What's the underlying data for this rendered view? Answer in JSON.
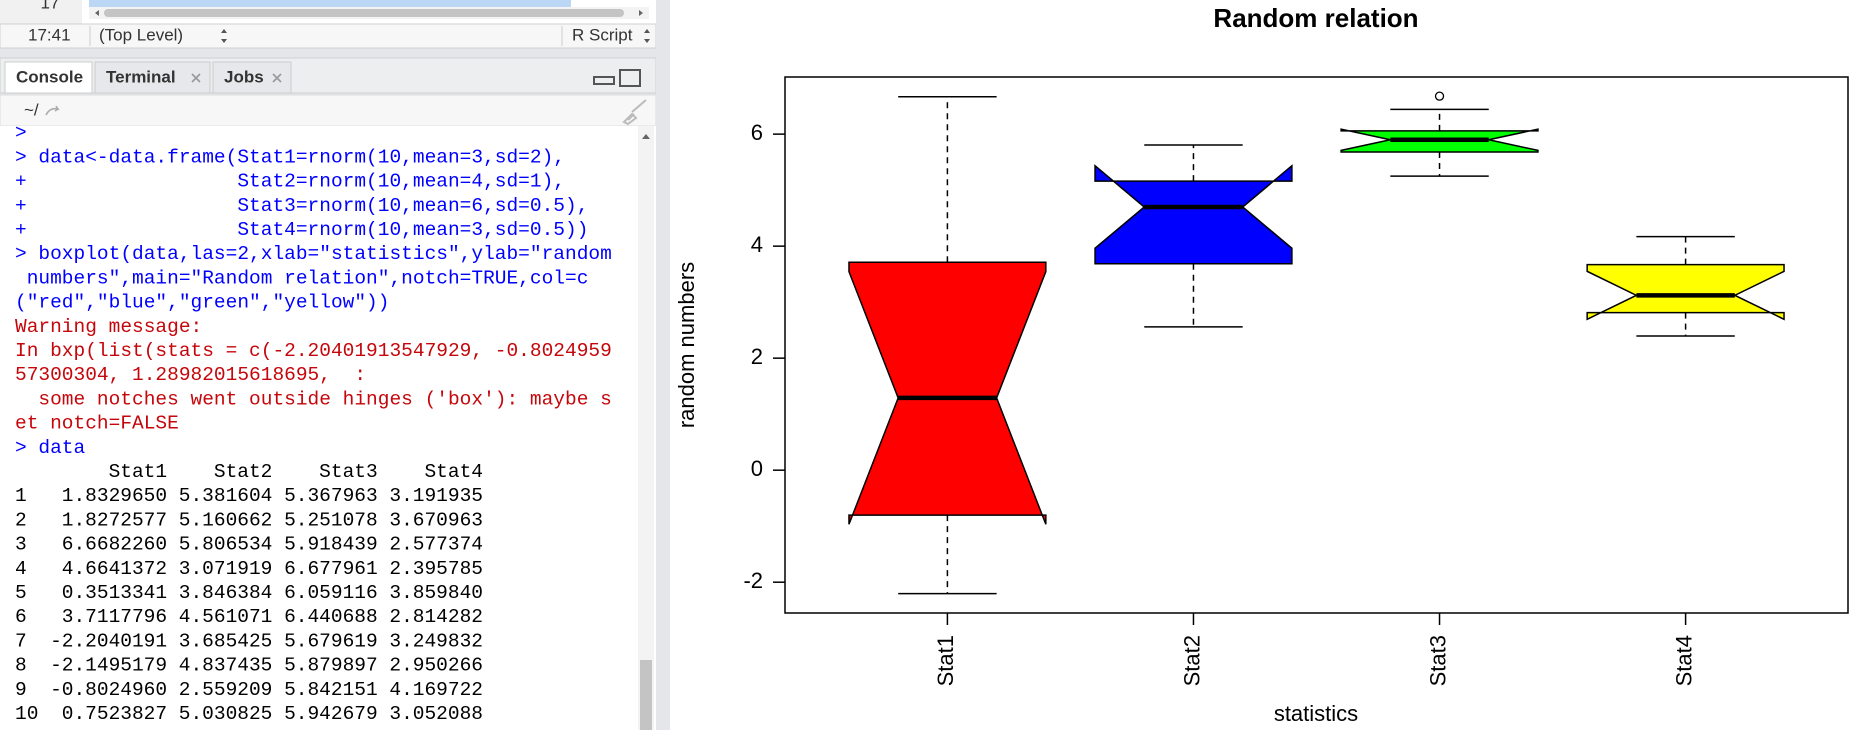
{
  "editor": {
    "line_number": "17",
    "cursor_position": "17:41",
    "scope": "(Top Level)",
    "file_type": "R Script"
  },
  "console": {
    "tabs": [
      {
        "label": "Console",
        "active": true,
        "closable": false
      },
      {
        "label": "Terminal",
        "active": false,
        "closable": true
      },
      {
        "label": "Jobs",
        "active": false,
        "closable": true
      }
    ],
    "path": "~/",
    "lines": [
      {
        "text": ">",
        "kind": "input"
      },
      {
        "text": "> data<-data.frame(Stat1=rnorm(10,mean=3,sd=2),",
        "kind": "input"
      },
      {
        "text": "+                  Stat2=rnorm(10,mean=4,sd=1),",
        "kind": "input"
      },
      {
        "text": "+                  Stat3=rnorm(10,mean=6,sd=0.5),",
        "kind": "input"
      },
      {
        "text": "+                  Stat4=rnorm(10,mean=3,sd=0.5))",
        "kind": "input"
      },
      {
        "text": "> boxplot(data,las=2,xlab=\"statistics\",ylab=\"random",
        "kind": "input"
      },
      {
        "text": " numbers\",main=\"Random relation\",notch=TRUE,col=c",
        "kind": "input"
      },
      {
        "text": "(\"red\",\"blue\",\"green\",\"yellow\"))",
        "kind": "input"
      },
      {
        "text": "Warning message:",
        "kind": "warning"
      },
      {
        "text": "In bxp(list(stats = c(-2.20401913547929, -0.8024959",
        "kind": "warning"
      },
      {
        "text": "57300304, 1.28982015618695,  :",
        "kind": "warning"
      },
      {
        "text": "  some notches went outside hinges ('box'): maybe s",
        "kind": "warning"
      },
      {
        "text": "et notch=FALSE",
        "kind": "warning"
      },
      {
        "text": "> data",
        "kind": "input"
      }
    ],
    "data_table": {
      "header": [
        "Stat1",
        "Stat2",
        "Stat3",
        "Stat4"
      ],
      "rows": [
        [
          "1",
          "1.8329650",
          "5.381604",
          "5.367963",
          "3.191935"
        ],
        [
          "2",
          "1.8272577",
          "5.160662",
          "5.251078",
          "3.670963"
        ],
        [
          "3",
          "6.6682260",
          "5.806534",
          "5.918439",
          "2.577374"
        ],
        [
          "4",
          "4.6641372",
          "3.071919",
          "6.677961",
          "2.395785"
        ],
        [
          "5",
          "0.3513341",
          "3.846384",
          "6.059116",
          "3.859840"
        ],
        [
          "6",
          "3.7117796",
          "4.561071",
          "6.440688",
          "2.814282"
        ],
        [
          "7",
          "-2.2040191",
          "3.685425",
          "5.679619",
          "3.249832"
        ],
        [
          "8",
          "-2.1495179",
          "4.837435",
          "5.879897",
          "2.950266"
        ],
        [
          "9",
          "-0.8024960",
          "2.559209",
          "5.842151",
          "4.169722"
        ],
        [
          "10",
          "0.7523827",
          "5.030825",
          "5.942679",
          "3.052088"
        ]
      ]
    }
  },
  "chart_data": {
    "type": "boxplot",
    "title": "Random relation",
    "xlabel": "statistics",
    "ylabel": "random numbers",
    "categories": [
      "Stat1",
      "Stat2",
      "Stat3",
      "Stat4"
    ],
    "boxes": [
      {
        "color": "red",
        "whisker_low": -2.204,
        "q1": -0.802,
        "notch_low": -0.966,
        "median": 1.29,
        "notch_high": 3.545,
        "q3": 3.712,
        "whisker_high": 6.668,
        "outliers": []
      },
      {
        "color": "blue",
        "whisker_low": 2.559,
        "q1": 3.685,
        "notch_low": 3.962,
        "median": 4.699,
        "notch_high": 5.436,
        "q3": 5.161,
        "whisker_high": 5.807,
        "outliers": []
      },
      {
        "color": "#00ff00",
        "whisker_low": 5.251,
        "q1": 5.68,
        "notch_low": 5.71,
        "median": 5.899,
        "notch_high": 6.089,
        "q3": 6.059,
        "whisker_high": 6.441,
        "outliers": [
          6.678
        ]
      },
      {
        "color": "yellow",
        "whisker_low": 2.396,
        "q1": 2.814,
        "notch_low": 2.694,
        "median": 3.122,
        "notch_high": 3.55,
        "q3": 3.671,
        "whisker_high": 4.17,
        "outliers": []
      }
    ],
    "ylim": [
      -2.55,
      7.02
    ],
    "yticks": [
      -2,
      0,
      2,
      4,
      6
    ]
  }
}
